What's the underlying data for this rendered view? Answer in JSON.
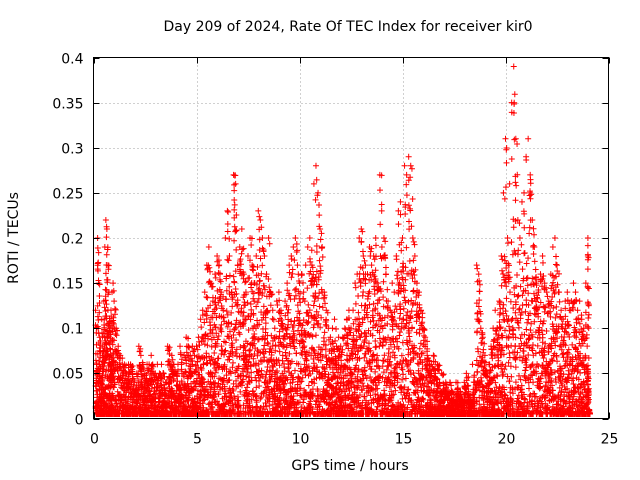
{
  "chart_data": {
    "type": "scatter",
    "title": "Day 209 of 2024, Rate Of TEC Index for receiver kir0",
    "xlabel": "GPS time / hours",
    "ylabel": "ROTI / TECUs",
    "xlim": [
      0,
      25
    ],
    "ylim": [
      0,
      0.4
    ],
    "xticks": [
      0,
      5,
      10,
      15,
      20,
      25
    ],
    "yticks": [
      0,
      0.05,
      0.1,
      0.15,
      0.2,
      0.25,
      0.3,
      0.35,
      0.4
    ],
    "xtick_labels": [
      "0",
      "5",
      "10",
      "15",
      "20",
      "25"
    ],
    "ytick_labels": [
      "0",
      "0.05",
      "0.1",
      "0.15",
      "0.2",
      "0.25",
      "0.3",
      "0.35",
      "0.4"
    ],
    "grid": true,
    "marker": "plus",
    "color": "#ff0000",
    "series": [
      {
        "points": [
          [
            0.1,
            0.12
          ],
          [
            0.15,
            0.06
          ],
          [
            0.2,
            0.2
          ],
          [
            0.25,
            0.15
          ],
          [
            0.3,
            0.09
          ],
          [
            0.35,
            0.04
          ],
          [
            0.4,
            0.11
          ],
          [
            0.45,
            0.08
          ],
          [
            0.5,
            0.13
          ],
          [
            0.55,
            0.19
          ],
          [
            0.6,
            0.22
          ],
          [
            0.65,
            0.21
          ],
          [
            0.7,
            0.17
          ],
          [
            0.75,
            0.14
          ],
          [
            0.8,
            0.1
          ],
          [
            0.85,
            0.12
          ],
          [
            0.9,
            0.14
          ],
          [
            0.95,
            0.15
          ],
          [
            1.0,
            0.13
          ],
          [
            1.1,
            0.1
          ],
          [
            1.2,
            0.08
          ],
          [
            1.3,
            0.07
          ],
          [
            1.4,
            0.06
          ],
          [
            1.5,
            0.06
          ],
          [
            1.6,
            0.05
          ],
          [
            1.7,
            0.06
          ],
          [
            1.8,
            0.06
          ],
          [
            1.9,
            0.05
          ],
          [
            2.0,
            0.04
          ],
          [
            2.1,
            0.05
          ],
          [
            2.2,
            0.08
          ],
          [
            2.3,
            0.07
          ],
          [
            2.4,
            0.06
          ],
          [
            2.5,
            0.05
          ],
          [
            2.6,
            0.06
          ],
          [
            2.7,
            0.06
          ],
          [
            2.8,
            0.07
          ],
          [
            2.9,
            0.05
          ],
          [
            3.0,
            0.05
          ],
          [
            3.1,
            0.06
          ],
          [
            3.2,
            0.05
          ],
          [
            3.3,
            0.06
          ],
          [
            3.4,
            0.05
          ],
          [
            3.5,
            0.04
          ],
          [
            3.6,
            0.08
          ],
          [
            3.7,
            0.06
          ],
          [
            3.8,
            0.07
          ],
          [
            3.9,
            0.06
          ],
          [
            4.0,
            0.05
          ],
          [
            4.1,
            0.06
          ],
          [
            4.2,
            0.08
          ],
          [
            4.3,
            0.05
          ],
          [
            4.4,
            0.07
          ],
          [
            4.5,
            0.09
          ],
          [
            4.6,
            0.08
          ],
          [
            4.7,
            0.07
          ],
          [
            4.8,
            0.08
          ],
          [
            4.9,
            0.07
          ],
          [
            5.0,
            0.08
          ],
          [
            5.1,
            0.09
          ],
          [
            5.2,
            0.11
          ],
          [
            5.3,
            0.12
          ],
          [
            5.4,
            0.14
          ],
          [
            5.5,
            0.17
          ],
          [
            5.6,
            0.19
          ],
          [
            5.7,
            0.15
          ],
          [
            5.8,
            0.13
          ],
          [
            5.9,
            0.16
          ],
          [
            6.0,
            0.18
          ],
          [
            6.1,
            0.17
          ],
          [
            6.2,
            0.14
          ],
          [
            6.3,
            0.12
          ],
          [
            6.4,
            0.2
          ],
          [
            6.5,
            0.23
          ],
          [
            6.6,
            0.18
          ],
          [
            6.7,
            0.14
          ],
          [
            6.8,
            0.27
          ],
          [
            6.9,
            0.26
          ],
          [
            7.0,
            0.17
          ],
          [
            7.1,
            0.19
          ],
          [
            7.2,
            0.21
          ],
          [
            7.3,
            0.16
          ],
          [
            7.4,
            0.14
          ],
          [
            7.5,
            0.18
          ],
          [
            7.6,
            0.2
          ],
          [
            7.7,
            0.17
          ],
          [
            7.8,
            0.15
          ],
          [
            7.9,
            0.18
          ],
          [
            8.0,
            0.23
          ],
          [
            8.1,
            0.22
          ],
          [
            8.2,
            0.2
          ],
          [
            8.3,
            0.18
          ],
          [
            8.4,
            0.16
          ],
          [
            8.5,
            0.2
          ],
          [
            8.6,
            0.14
          ],
          [
            8.7,
            0.12
          ],
          [
            8.8,
            0.1
          ],
          [
            8.9,
            0.13
          ],
          [
            9.0,
            0.14
          ],
          [
            9.1,
            0.12
          ],
          [
            9.2,
            0.1
          ],
          [
            9.3,
            0.13
          ],
          [
            9.4,
            0.15
          ],
          [
            9.5,
            0.17
          ],
          [
            9.6,
            0.18
          ],
          [
            9.7,
            0.19
          ],
          [
            9.8,
            0.2
          ],
          [
            9.9,
            0.17
          ],
          [
            10.0,
            0.15
          ],
          [
            10.1,
            0.16
          ],
          [
            10.2,
            0.14
          ],
          [
            10.3,
            0.17
          ],
          [
            10.4,
            0.19
          ],
          [
            10.5,
            0.2
          ],
          [
            10.6,
            0.17
          ],
          [
            10.7,
            0.26
          ],
          [
            10.8,
            0.28
          ],
          [
            10.9,
            0.25
          ],
          [
            11.0,
            0.21
          ],
          [
            11.1,
            0.19
          ],
          [
            11.2,
            0.14
          ],
          [
            11.3,
            0.12
          ],
          [
            11.4,
            0.1
          ],
          [
            11.5,
            0.09
          ],
          [
            11.6,
            0.1
          ],
          [
            11.7,
            0.11
          ],
          [
            11.8,
            0.08
          ],
          [
            11.9,
            0.09
          ],
          [
            12.0,
            0.08
          ],
          [
            12.1,
            0.09
          ],
          [
            12.2,
            0.1
          ],
          [
            12.3,
            0.11
          ],
          [
            12.4,
            0.12
          ],
          [
            12.5,
            0.1
          ],
          [
            12.6,
            0.12
          ],
          [
            12.7,
            0.15
          ],
          [
            12.8,
            0.16
          ],
          [
            12.9,
            0.2
          ],
          [
            13.0,
            0.21
          ],
          [
            13.1,
            0.18
          ],
          [
            13.2,
            0.17
          ],
          [
            13.3,
            0.16
          ],
          [
            13.4,
            0.19
          ],
          [
            13.5,
            0.17
          ],
          [
            13.6,
            0.18
          ],
          [
            13.7,
            0.2
          ],
          [
            13.8,
            0.15
          ],
          [
            13.9,
            0.27
          ],
          [
            14.0,
            0.19
          ],
          [
            14.1,
            0.2
          ],
          [
            14.2,
            0.16
          ],
          [
            14.3,
            0.13
          ],
          [
            14.4,
            0.12
          ],
          [
            14.5,
            0.15
          ],
          [
            14.6,
            0.14
          ],
          [
            14.7,
            0.18
          ],
          [
            14.8,
            0.23
          ],
          [
            14.9,
            0.24
          ],
          [
            15.0,
            0.2
          ],
          [
            15.1,
            0.28
          ],
          [
            15.2,
            0.27
          ],
          [
            15.3,
            0.29
          ],
          [
            15.4,
            0.28
          ],
          [
            15.5,
            0.2
          ],
          [
            15.6,
            0.18
          ],
          [
            15.7,
            0.15
          ],
          [
            15.8,
            0.14
          ],
          [
            15.9,
            0.12
          ],
          [
            16.0,
            0.1
          ],
          [
            16.1,
            0.09
          ],
          [
            16.2,
            0.07
          ],
          [
            16.3,
            0.06
          ],
          [
            16.4,
            0.06
          ],
          [
            16.5,
            0.07
          ],
          [
            16.6,
            0.05
          ],
          [
            16.7,
            0.06
          ],
          [
            16.8,
            0.04
          ],
          [
            16.9,
            0.05
          ],
          [
            17.0,
            0.03
          ],
          [
            17.1,
            0.04
          ],
          [
            17.2,
            0.03
          ],
          [
            17.3,
            0.04
          ],
          [
            17.4,
            0.03
          ],
          [
            17.5,
            0.02
          ],
          [
            17.6,
            0.04
          ],
          [
            17.7,
            0.03
          ],
          [
            17.8,
            0.03
          ],
          [
            17.9,
            0.02
          ],
          [
            18.0,
            0.04
          ],
          [
            18.1,
            0.05
          ],
          [
            18.2,
            0.03
          ],
          [
            18.3,
            0.02
          ],
          [
            18.4,
            0.06
          ],
          [
            18.5,
            0.04
          ],
          [
            18.6,
            0.17
          ],
          [
            18.7,
            0.16
          ],
          [
            18.8,
            0.1
          ],
          [
            18.9,
            0.09
          ],
          [
            19.0,
            0.07
          ],
          [
            19.1,
            0.05
          ],
          [
            19.2,
            0.06
          ],
          [
            19.3,
            0.08
          ],
          [
            19.4,
            0.1
          ],
          [
            19.5,
            0.12
          ],
          [
            19.6,
            0.1
          ],
          [
            19.7,
            0.13
          ],
          [
            19.8,
            0.18
          ],
          [
            19.9,
            0.25
          ],
          [
            20.0,
            0.31
          ],
          [
            20.1,
            0.2
          ],
          [
            20.2,
            0.26
          ],
          [
            20.3,
            0.35
          ],
          [
            20.4,
            0.39
          ],
          [
            20.5,
            0.31
          ],
          [
            20.6,
            0.22
          ],
          [
            20.7,
            0.2
          ],
          [
            20.8,
            0.24
          ],
          [
            20.9,
            0.25
          ],
          [
            21.0,
            0.29
          ],
          [
            21.1,
            0.31
          ],
          [
            21.2,
            0.27
          ],
          [
            21.3,
            0.22
          ],
          [
            21.4,
            0.19
          ],
          [
            21.5,
            0.15
          ],
          [
            21.6,
            0.14
          ],
          [
            21.7,
            0.16
          ],
          [
            21.8,
            0.18
          ],
          [
            21.9,
            0.15
          ],
          [
            22.0,
            0.14
          ],
          [
            22.1,
            0.13
          ],
          [
            22.2,
            0.16
          ],
          [
            22.3,
            0.19
          ],
          [
            22.4,
            0.2
          ],
          [
            22.5,
            0.17
          ],
          [
            22.6,
            0.14
          ],
          [
            22.7,
            0.12
          ],
          [
            22.8,
            0.11
          ],
          [
            22.9,
            0.13
          ],
          [
            23.0,
            0.14
          ],
          [
            23.1,
            0.12
          ],
          [
            23.2,
            0.13
          ],
          [
            23.3,
            0.15
          ],
          [
            23.4,
            0.14
          ],
          [
            23.5,
            0.12
          ],
          [
            23.6,
            0.13
          ],
          [
            23.7,
            0.11
          ],
          [
            23.8,
            0.1
          ],
          [
            23.9,
            0.15
          ],
          [
            24.0,
            0.2
          ],
          [
            24.0,
            0.18
          ],
          [
            24.05,
            0.01
          ]
        ]
      }
    ]
  }
}
